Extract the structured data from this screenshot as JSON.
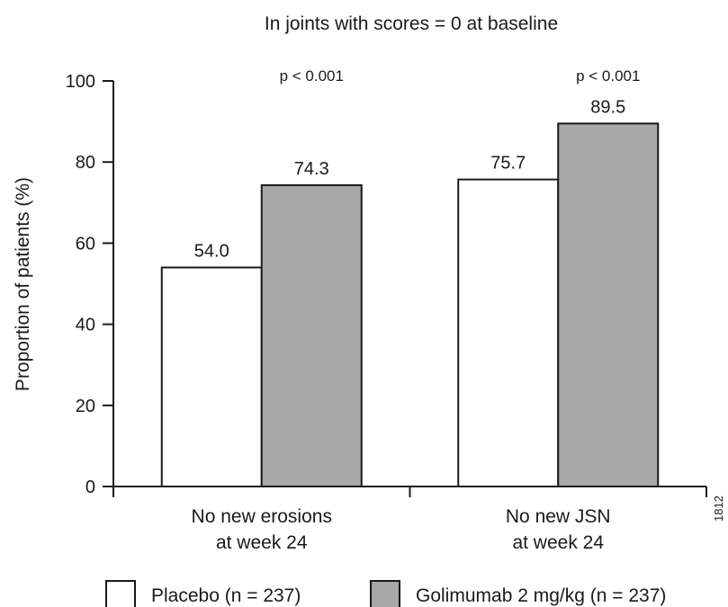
{
  "chart_data": {
    "type": "bar",
    "title": "In joints with scores = 0 at baseline",
    "ylabel": "Proportion of patients (%)",
    "xlabel": "",
    "ylim": [
      0,
      100
    ],
    "yticks": [
      0,
      20,
      40,
      60,
      80,
      100
    ],
    "categories": [
      [
        "No new erosions",
        "at week 24"
      ],
      [
        "No new JSN",
        "at week 24"
      ]
    ],
    "series": [
      {
        "name": "Placebo (n = 237)",
        "color": "#ffffff",
        "values": [
          54.0,
          75.7
        ],
        "labels": [
          "54.0",
          "75.7"
        ]
      },
      {
        "name": "Golimumab 2 mg/kg (n = 237)",
        "color": "#a8a8a8",
        "values": [
          74.3,
          89.5
        ],
        "labels": [
          "74.3",
          "89.5"
        ]
      }
    ],
    "annotations": [
      "p < 0.001",
      "p < 0.001"
    ],
    "side_label": "1812",
    "legend_position": "bottom",
    "grid": false
  }
}
